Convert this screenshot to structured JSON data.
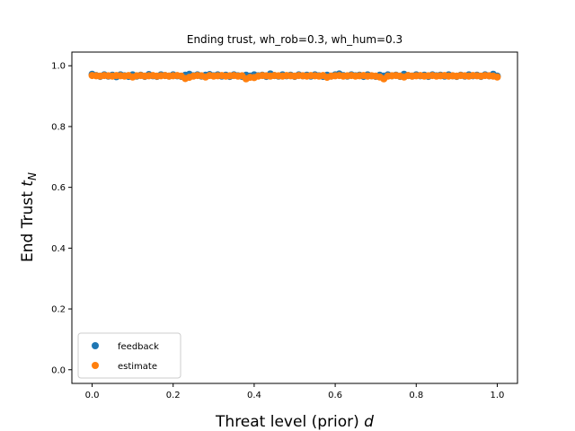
{
  "chart_data": {
    "type": "scatter",
    "title": "Ending trust, wh_rob=0.3, wh_hum=0.3",
    "xlabel": "Threat level (prior)",
    "xlabel_var": "d",
    "ylabel": "End Trust",
    "ylabel_var": "t",
    "ylabel_sub": "N",
    "xlim": [
      -0.05,
      1.05
    ],
    "ylim": [
      -0.045,
      1.045
    ],
    "x_ticks": [
      0.0,
      0.2,
      0.4,
      0.6,
      0.8,
      1.0
    ],
    "x_tick_labels": [
      "0.0",
      "0.2",
      "0.4",
      "0.6",
      "0.8",
      "1.0"
    ],
    "y_ticks": [
      0.0,
      0.2,
      0.4,
      0.6,
      0.8,
      1.0
    ],
    "y_tick_labels": [
      "0.0",
      "0.2",
      "0.4",
      "0.6",
      "0.8",
      "1.0"
    ],
    "grid": false,
    "legend_position": "lower-left",
    "series": [
      {
        "name": "feedback",
        "color": "#1f77b4",
        "points": [
          [
            0.0,
            0.972
          ],
          [
            0.01,
            0.968
          ],
          [
            0.02,
            0.965
          ],
          [
            0.03,
            0.97
          ],
          [
            0.04,
            0.966
          ],
          [
            0.05,
            0.969
          ],
          [
            0.06,
            0.964
          ],
          [
            0.07,
            0.97
          ],
          [
            0.08,
            0.967
          ],
          [
            0.09,
            0.965
          ],
          [
            0.1,
            0.97
          ],
          [
            0.11,
            0.966
          ],
          [
            0.12,
            0.969
          ],
          [
            0.13,
            0.965
          ],
          [
            0.14,
            0.971
          ],
          [
            0.15,
            0.967
          ],
          [
            0.16,
            0.965
          ],
          [
            0.17,
            0.97
          ],
          [
            0.18,
            0.968
          ],
          [
            0.19,
            0.966
          ],
          [
            0.2,
            0.97
          ],
          [
            0.21,
            0.967
          ],
          [
            0.22,
            0.965
          ],
          [
            0.23,
            0.969
          ],
          [
            0.24,
            0.972
          ],
          [
            0.25,
            0.967
          ],
          [
            0.26,
            0.97
          ],
          [
            0.27,
            0.966
          ],
          [
            0.28,
            0.969
          ],
          [
            0.29,
            0.971
          ],
          [
            0.3,
            0.967
          ],
          [
            0.31,
            0.97
          ],
          [
            0.32,
            0.966
          ],
          [
            0.33,
            0.969
          ],
          [
            0.34,
            0.965
          ],
          [
            0.35,
            0.97
          ],
          [
            0.36,
            0.967
          ],
          [
            0.37,
            0.965
          ],
          [
            0.38,
            0.969
          ],
          [
            0.39,
            0.966
          ],
          [
            0.4,
            0.97
          ],
          [
            0.41,
            0.967
          ],
          [
            0.42,
            0.969
          ],
          [
            0.43,
            0.965
          ],
          [
            0.44,
            0.973
          ],
          [
            0.45,
            0.968
          ],
          [
            0.46,
            0.966
          ],
          [
            0.47,
            0.97
          ],
          [
            0.48,
            0.967
          ],
          [
            0.49,
            0.969
          ],
          [
            0.5,
            0.965
          ],
          [
            0.51,
            0.97
          ],
          [
            0.52,
            0.967
          ],
          [
            0.53,
            0.969
          ],
          [
            0.54,
            0.966
          ],
          [
            0.55,
            0.97
          ],
          [
            0.56,
            0.967
          ],
          [
            0.57,
            0.965
          ],
          [
            0.58,
            0.969
          ],
          [
            0.59,
            0.966
          ],
          [
            0.6,
            0.97
          ],
          [
            0.61,
            0.973
          ],
          [
            0.62,
            0.968
          ],
          [
            0.63,
            0.966
          ],
          [
            0.64,
            0.97
          ],
          [
            0.65,
            0.967
          ],
          [
            0.66,
            0.969
          ],
          [
            0.67,
            0.965
          ],
          [
            0.68,
            0.97
          ],
          [
            0.69,
            0.967
          ],
          [
            0.7,
            0.965
          ],
          [
            0.71,
            0.969
          ],
          [
            0.72,
            0.966
          ],
          [
            0.73,
            0.97
          ],
          [
            0.74,
            0.967
          ],
          [
            0.75,
            0.969
          ],
          [
            0.76,
            0.965
          ],
          [
            0.77,
            0.972
          ],
          [
            0.78,
            0.968
          ],
          [
            0.79,
            0.966
          ],
          [
            0.8,
            0.97
          ],
          [
            0.81,
            0.967
          ],
          [
            0.82,
            0.969
          ],
          [
            0.83,
            0.965
          ],
          [
            0.84,
            0.97
          ],
          [
            0.85,
            0.967
          ],
          [
            0.86,
            0.969
          ],
          [
            0.87,
            0.966
          ],
          [
            0.88,
            0.97
          ],
          [
            0.89,
            0.967
          ],
          [
            0.9,
            0.965
          ],
          [
            0.91,
            0.969
          ],
          [
            0.92,
            0.966
          ],
          [
            0.93,
            0.97
          ],
          [
            0.94,
            0.967
          ],
          [
            0.95,
            0.969
          ],
          [
            0.96,
            0.965
          ],
          [
            0.97,
            0.97
          ],
          [
            0.98,
            0.967
          ],
          [
            0.99,
            0.972
          ],
          [
            1.0,
            0.966
          ]
        ]
      },
      {
        "name": "estimate",
        "color": "#ff7f0e",
        "points": [
          [
            0.0,
            0.968
          ],
          [
            0.01,
            0.967
          ],
          [
            0.02,
            0.966
          ],
          [
            0.03,
            0.968
          ],
          [
            0.04,
            0.967
          ],
          [
            0.05,
            0.966
          ],
          [
            0.06,
            0.968
          ],
          [
            0.07,
            0.967
          ],
          [
            0.08,
            0.966
          ],
          [
            0.09,
            0.968
          ],
          [
            0.1,
            0.963
          ],
          [
            0.11,
            0.967
          ],
          [
            0.12,
            0.968
          ],
          [
            0.13,
            0.966
          ],
          [
            0.14,
            0.967
          ],
          [
            0.15,
            0.968
          ],
          [
            0.16,
            0.966
          ],
          [
            0.17,
            0.967
          ],
          [
            0.18,
            0.968
          ],
          [
            0.19,
            0.966
          ],
          [
            0.2,
            0.967
          ],
          [
            0.21,
            0.968
          ],
          [
            0.22,
            0.966
          ],
          [
            0.23,
            0.958
          ],
          [
            0.24,
            0.962
          ],
          [
            0.25,
            0.966
          ],
          [
            0.26,
            0.968
          ],
          [
            0.27,
            0.967
          ],
          [
            0.28,
            0.963
          ],
          [
            0.29,
            0.968
          ],
          [
            0.3,
            0.966
          ],
          [
            0.31,
            0.967
          ],
          [
            0.32,
            0.968
          ],
          [
            0.33,
            0.966
          ],
          [
            0.34,
            0.967
          ],
          [
            0.35,
            0.968
          ],
          [
            0.36,
            0.966
          ],
          [
            0.37,
            0.967
          ],
          [
            0.38,
            0.957
          ],
          [
            0.39,
            0.962
          ],
          [
            0.4,
            0.961
          ],
          [
            0.41,
            0.966
          ],
          [
            0.42,
            0.968
          ],
          [
            0.43,
            0.967
          ],
          [
            0.44,
            0.966
          ],
          [
            0.45,
            0.968
          ],
          [
            0.46,
            0.967
          ],
          [
            0.47,
            0.966
          ],
          [
            0.48,
            0.968
          ],
          [
            0.49,
            0.967
          ],
          [
            0.5,
            0.966
          ],
          [
            0.51,
            0.968
          ],
          [
            0.52,
            0.967
          ],
          [
            0.53,
            0.966
          ],
          [
            0.54,
            0.968
          ],
          [
            0.55,
            0.967
          ],
          [
            0.56,
            0.966
          ],
          [
            0.57,
            0.968
          ],
          [
            0.58,
            0.962
          ],
          [
            0.59,
            0.966
          ],
          [
            0.6,
            0.967
          ],
          [
            0.61,
            0.968
          ],
          [
            0.62,
            0.966
          ],
          [
            0.63,
            0.967
          ],
          [
            0.64,
            0.968
          ],
          [
            0.65,
            0.966
          ],
          [
            0.66,
            0.967
          ],
          [
            0.67,
            0.968
          ],
          [
            0.68,
            0.966
          ],
          [
            0.69,
            0.967
          ],
          [
            0.7,
            0.966
          ],
          [
            0.71,
            0.963
          ],
          [
            0.72,
            0.957
          ],
          [
            0.73,
            0.966
          ],
          [
            0.74,
            0.967
          ],
          [
            0.75,
            0.968
          ],
          [
            0.76,
            0.966
          ],
          [
            0.77,
            0.963
          ],
          [
            0.78,
            0.968
          ],
          [
            0.79,
            0.966
          ],
          [
            0.8,
            0.967
          ],
          [
            0.81,
            0.968
          ],
          [
            0.82,
            0.966
          ],
          [
            0.83,
            0.967
          ],
          [
            0.84,
            0.968
          ],
          [
            0.85,
            0.966
          ],
          [
            0.86,
            0.967
          ],
          [
            0.87,
            0.968
          ],
          [
            0.88,
            0.966
          ],
          [
            0.89,
            0.967
          ],
          [
            0.9,
            0.966
          ],
          [
            0.91,
            0.968
          ],
          [
            0.92,
            0.967
          ],
          [
            0.93,
            0.966
          ],
          [
            0.94,
            0.968
          ],
          [
            0.95,
            0.967
          ],
          [
            0.96,
            0.966
          ],
          [
            0.97,
            0.968
          ],
          [
            0.98,
            0.967
          ],
          [
            0.99,
            0.966
          ],
          [
            1.0,
            0.963
          ]
        ]
      }
    ]
  }
}
